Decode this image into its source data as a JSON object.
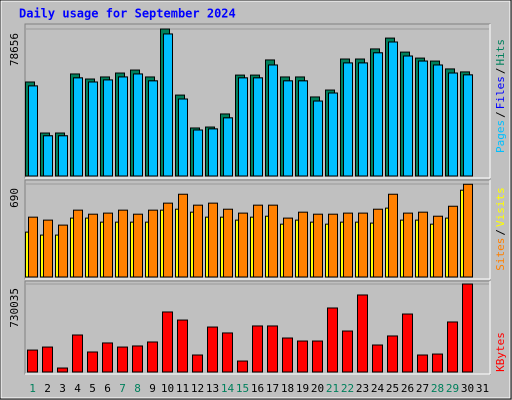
{
  "chart_data": [
    {
      "type": "bar",
      "title": "Daily usage for September 2024",
      "ylim": [
        0,
        78656
      ],
      "yticks": [
        78656
      ],
      "legend_separator": "/",
      "series": [
        {
          "name": "Hits",
          "color": "#00805c",
          "values": [
            50300,
            23000,
            23000,
            54600,
            51900,
            53000,
            55100,
            56700,
            53000,
            78656,
            43300,
            25700,
            26200,
            33200,
            54000,
            54000,
            62100,
            53000,
            53000,
            42300,
            46000,
            62600,
            62600,
            68000,
            73800,
            66300,
            63100,
            61500,
            57300,
            55700,
            null
          ]
        },
        {
          "name": "Files",
          "color": "#0000ff",
          "values": [
            48200,
            21500,
            21500,
            52500,
            50300,
            51400,
            53000,
            54600,
            50900,
            76000,
            41200,
            24600,
            25200,
            31100,
            52500,
            52500,
            59400,
            50900,
            50900,
            40100,
            44400,
            60500,
            60500,
            65900,
            71700,
            64200,
            61500,
            59400,
            55100,
            54100,
            null
          ]
        },
        {
          "name": "Pages",
          "color": "#00c0ff",
          "values": [
            48200,
            21500,
            21500,
            52500,
            50300,
            51400,
            53000,
            54600,
            50900,
            76000,
            41200,
            24600,
            25200,
            31100,
            52500,
            52500,
            59400,
            50900,
            50900,
            40100,
            44400,
            60500,
            60500,
            65900,
            71700,
            64200,
            61500,
            59400,
            55100,
            54100,
            null
          ]
        }
      ]
    },
    {
      "type": "bar",
      "ylim": [
        0,
        690
      ],
      "yticks": [
        690
      ],
      "legend_separator": "/",
      "series": [
        {
          "name": "Visits",
          "color": "#ffff00",
          "values": [
            333,
            311,
            311,
            437,
            437,
            407,
            407,
            407,
            407,
            496,
            503,
            481,
            444,
            444,
            422,
            444,
            451,
            392,
            422,
            407,
            392,
            407,
            407,
            400,
            511,
            422,
            422,
            392,
            437,
            644,
            null
          ]
        },
        {
          "name": "Sites",
          "color": "#ff8000",
          "values": [
            444,
            422,
            385,
            496,
            466,
            474,
            496,
            466,
            496,
            548,
            614,
            533,
            548,
            503,
            474,
            533,
            533,
            437,
            481,
            466,
            466,
            474,
            474,
            503,
            614,
            474,
            481,
            451,
            525,
            688,
            null
          ]
        }
      ]
    },
    {
      "type": "bar",
      "ylim": [
        0,
        730035
      ],
      "yticks": [
        730035
      ],
      "categories": [
        "1",
        "2",
        "3",
        "4",
        "5",
        "6",
        "7",
        "8",
        "9",
        "10",
        "11",
        "12",
        "13",
        "14",
        "15",
        "16",
        "17",
        "18",
        "19",
        "20",
        "21",
        "22",
        "23",
        "24",
        "25",
        "26",
        "27",
        "28",
        "29",
        "30",
        "31"
      ],
      "category_colors": [
        "#00805c",
        "#000000",
        "#000000",
        "#000000",
        "#000000",
        "#000000",
        "#00805c",
        "#00805c",
        "#000000",
        "#000000",
        "#000000",
        "#000000",
        "#000000",
        "#00805c",
        "#00805c",
        "#000000",
        "#000000",
        "#000000",
        "#000000",
        "#000000",
        "#00805c",
        "#00805c",
        "#000000",
        "#000000",
        "#000000",
        "#000000",
        "#000000",
        "#00805c",
        "#00805c",
        "#000000",
        "#000000"
      ],
      "series": [
        {
          "name": "KBytes",
          "color": "#ff0000",
          "values": [
            182000,
            207000,
            33000,
            307000,
            166000,
            241000,
            207000,
            216000,
            249000,
            498000,
            431000,
            141000,
            373000,
            324000,
            91000,
            382000,
            382000,
            282000,
            257000,
            257000,
            531000,
            340000,
            639000,
            224000,
            299000,
            481000,
            141000,
            149000,
            415000,
            730035,
            null
          ]
        }
      ]
    }
  ]
}
